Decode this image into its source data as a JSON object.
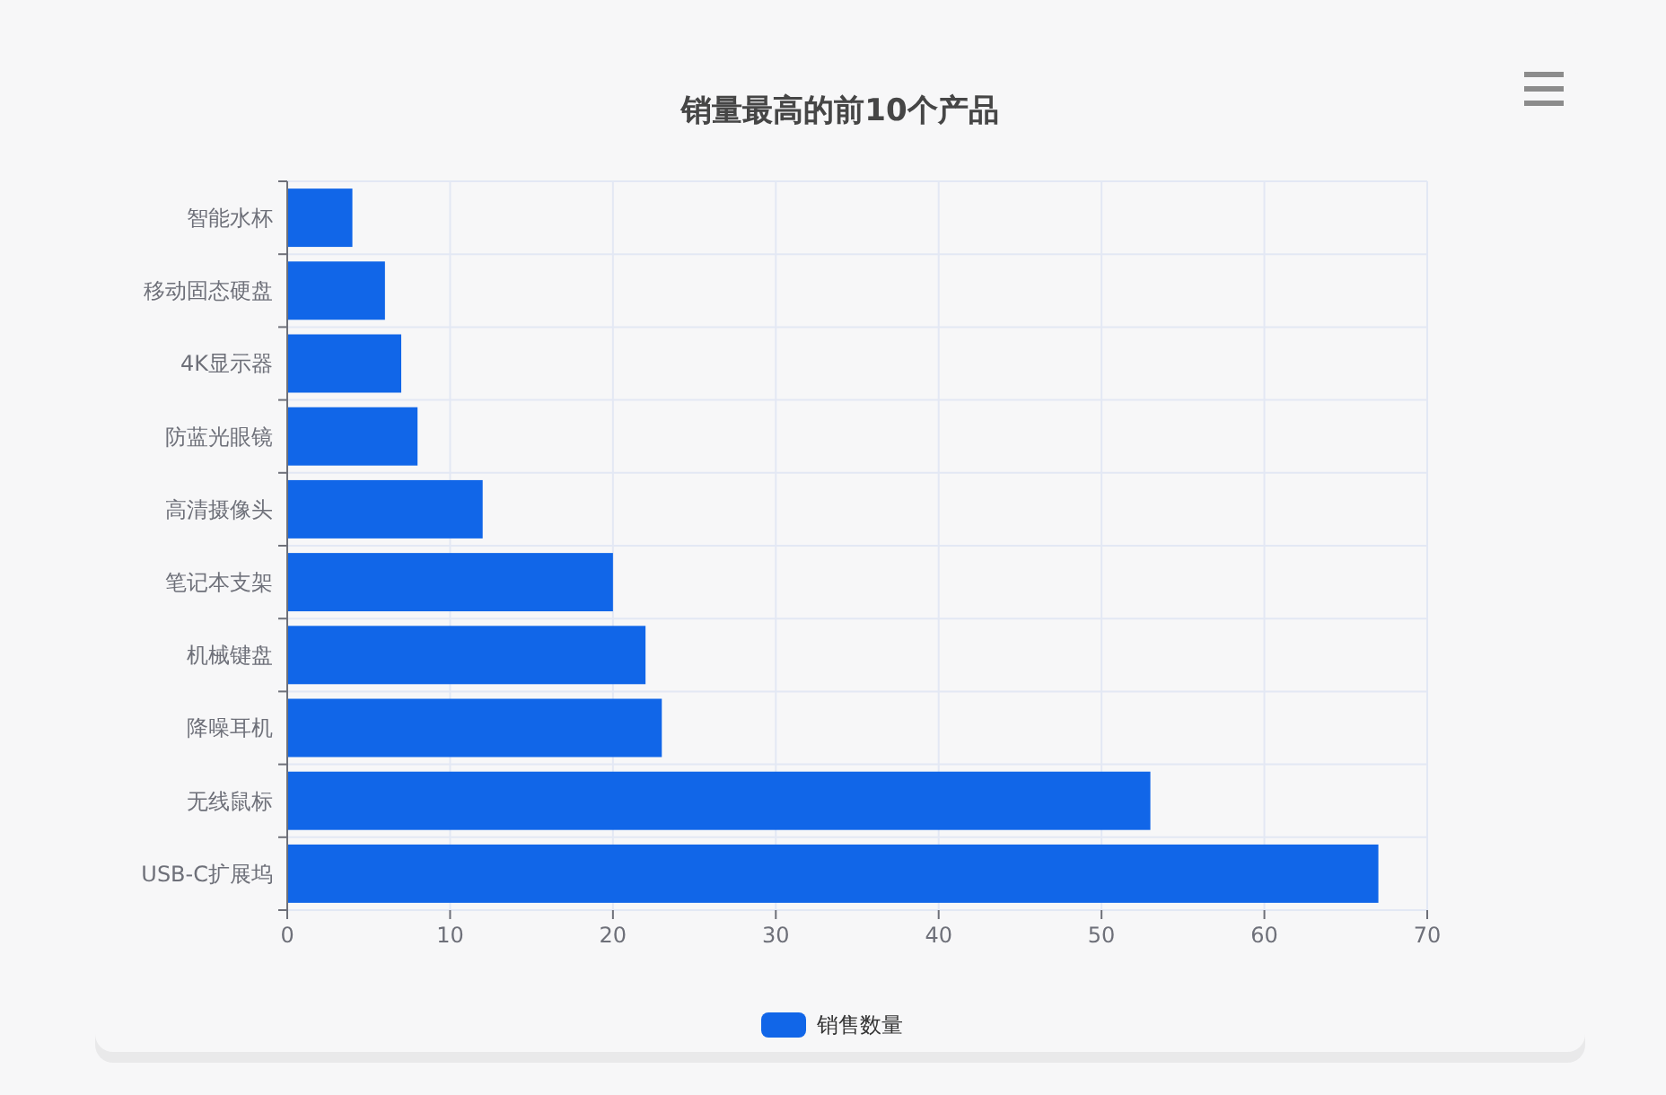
{
  "chart_data": {
    "type": "bar",
    "orientation": "horizontal",
    "title": "销量最高的前10个产品",
    "categories": [
      "智能水杯",
      "移动固态硬盘",
      "4K显示器",
      "防蓝光眼镜",
      "高清摄像头",
      "笔记本支架",
      "机械键盘",
      "降噪耳机",
      "无线鼠标",
      "USB-C扩展坞"
    ],
    "series": [
      {
        "name": "销售数量",
        "color": "#1166e8",
        "values": [
          4,
          6,
          7,
          8,
          12,
          20,
          22,
          23,
          53,
          67
        ]
      }
    ],
    "xlim": [
      0,
      70
    ],
    "xticks": [
      0,
      10,
      20,
      30,
      40,
      50,
      60,
      70
    ],
    "grid": true,
    "legend": "bottom"
  }
}
